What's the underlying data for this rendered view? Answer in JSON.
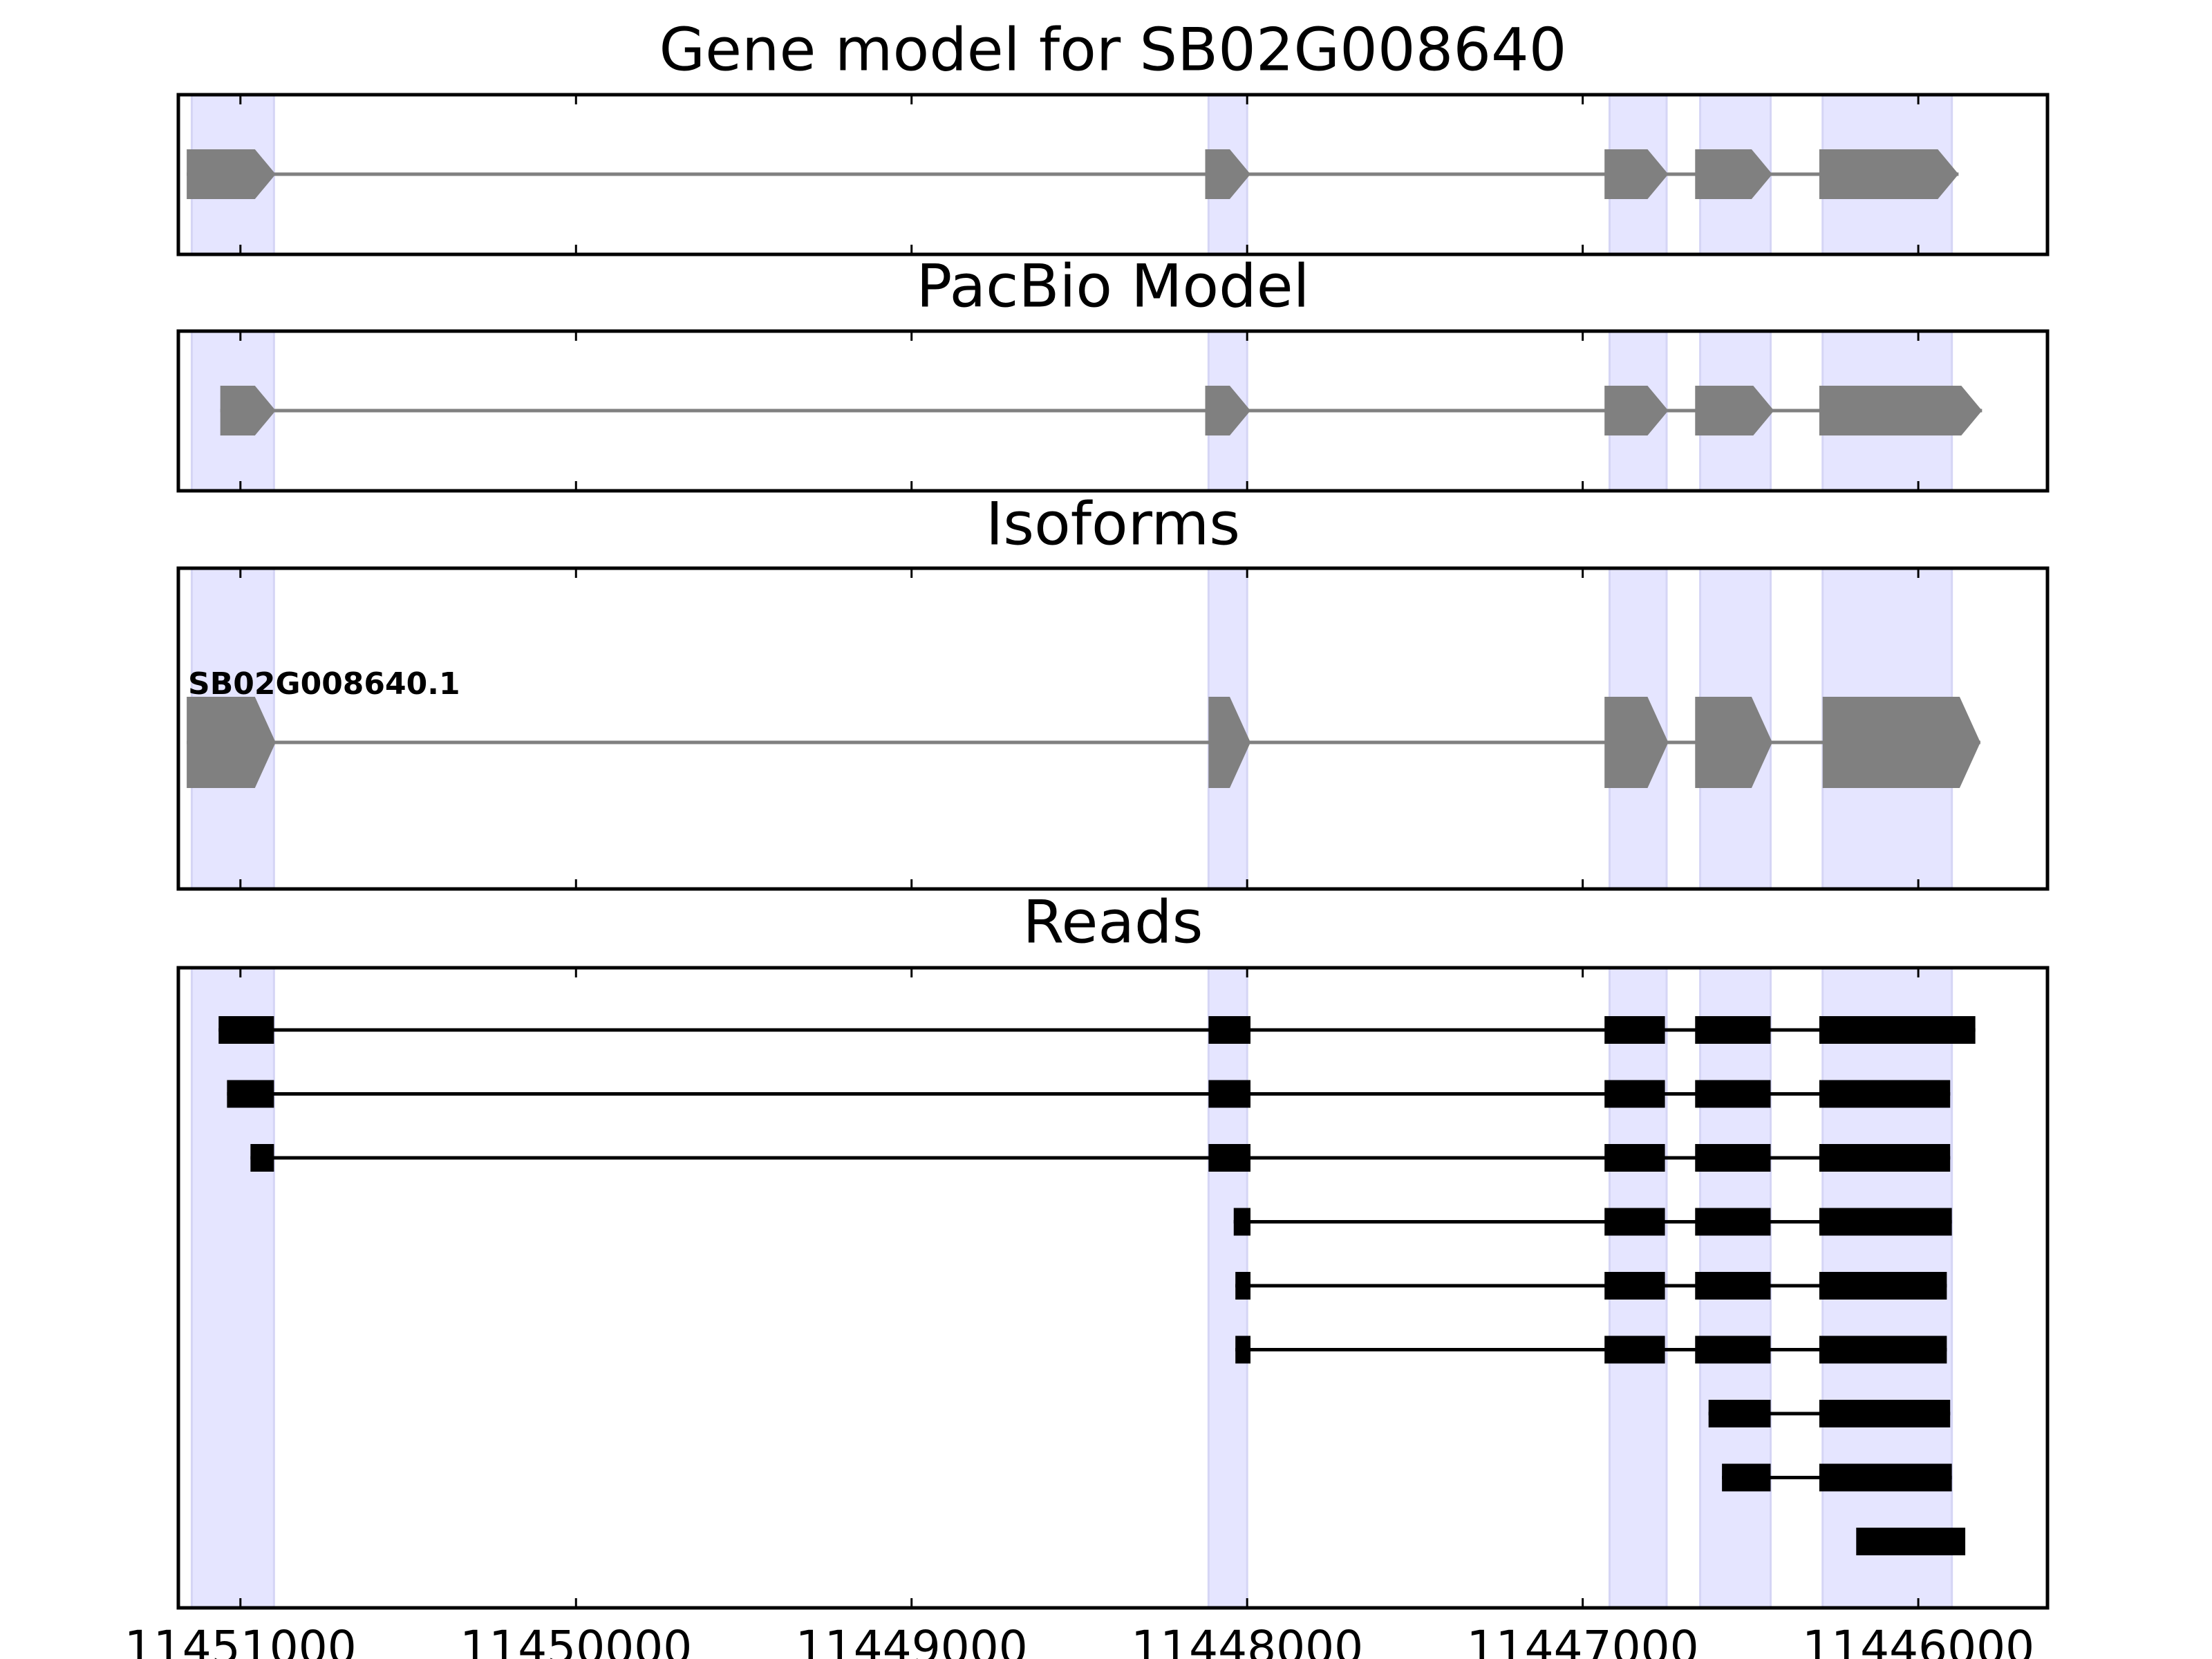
{
  "chart_data": {
    "type": "diagram",
    "x_axis": {
      "reversed": true,
      "xlim": [
        11451185,
        11445615
      ],
      "ticks": [
        11451000,
        11450000,
        11449000,
        11448000,
        11447000,
        11446000
      ],
      "tick_labels": [
        "11451000",
        "11450000",
        "11449000",
        "11448000",
        "11447000",
        "11446000"
      ]
    },
    "colors": {
      "highlight": "#e5e5ff",
      "highlight_edge": "#d5d5f5",
      "gene_feature": "#808080",
      "read_feature": "#000000",
      "frame": "#000000"
    },
    "highlight_regions": [
      [
        11451145,
        11450900
      ],
      [
        11448115,
        11448000
      ],
      [
        11446920,
        11446750
      ],
      [
        11446650,
        11446440
      ],
      [
        11446285,
        11445900
      ]
    ],
    "panels": [
      {
        "id": "gene-model",
        "title": "Gene model for SB02G008640",
        "style": "arrow",
        "rows": [
          {
            "label": "",
            "exons": [
              [
                11451160,
                11450895
              ],
              [
                11448125,
                11447990
              ],
              [
                11446935,
                11446745
              ],
              [
                11446665,
                11446435
              ],
              [
                11446295,
                11445880
              ]
            ]
          }
        ]
      },
      {
        "id": "pacbio-model",
        "title": "PacBio Model",
        "style": "arrow",
        "rows": [
          {
            "label": "",
            "exons": [
              [
                11451060,
                11450895
              ],
              [
                11448125,
                11447990
              ],
              [
                11446935,
                11446745
              ],
              [
                11446665,
                11446430
              ],
              [
                11446295,
                11445810
              ]
            ]
          }
        ]
      },
      {
        "id": "isoforms",
        "title": "Isoforms",
        "style": "arrow",
        "rows": [
          {
            "label": "SB02G008640.1",
            "exons": [
              [
                11451160,
                11450895
              ],
              [
                11448115,
                11447990
              ],
              [
                11446935,
                11446745
              ],
              [
                11446665,
                11446435
              ],
              [
                11446285,
                11445815
              ]
            ]
          }
        ]
      },
      {
        "id": "reads",
        "title": "Reads",
        "style": "box",
        "rows": [
          {
            "label": "",
            "exons": [
              [
                11451065,
                11450900
              ],
              [
                11448115,
                11447990
              ],
              [
                11446935,
                11446755
              ],
              [
                11446665,
                11446440
              ],
              [
                11446295,
                11445830
              ]
            ]
          },
          {
            "label": "",
            "exons": [
              [
                11451040,
                11450900
              ],
              [
                11448115,
                11447990
              ],
              [
                11446935,
                11446755
              ],
              [
                11446665,
                11446440
              ],
              [
                11446295,
                11445905
              ]
            ]
          },
          {
            "label": "",
            "exons": [
              [
                11450970,
                11450900
              ],
              [
                11448115,
                11447990
              ],
              [
                11446935,
                11446755
              ],
              [
                11446665,
                11446440
              ],
              [
                11446295,
                11445905
              ]
            ]
          },
          {
            "label": "",
            "exons": [
              [
                11448040,
                11447990
              ],
              [
                11446935,
                11446755
              ],
              [
                11446665,
                11446440
              ],
              [
                11446295,
                11445900
              ]
            ]
          },
          {
            "label": "",
            "exons": [
              [
                11448035,
                11447990
              ],
              [
                11446935,
                11446755
              ],
              [
                11446665,
                11446440
              ],
              [
                11446295,
                11445915
              ]
            ]
          },
          {
            "label": "",
            "exons": [
              [
                11448035,
                11447990
              ],
              [
                11446935,
                11446755
              ],
              [
                11446665,
                11446440
              ],
              [
                11446295,
                11445915
              ]
            ]
          },
          {
            "label": "",
            "exons": [
              [
                11446625,
                11446440
              ],
              [
                11446295,
                11445905
              ]
            ]
          },
          {
            "label": "",
            "exons": [
              [
                11446585,
                11446440
              ],
              [
                11446295,
                11445900
              ]
            ]
          },
          {
            "label": "",
            "exons": [
              [
                11446185,
                11445860
              ]
            ]
          }
        ]
      }
    ]
  }
}
